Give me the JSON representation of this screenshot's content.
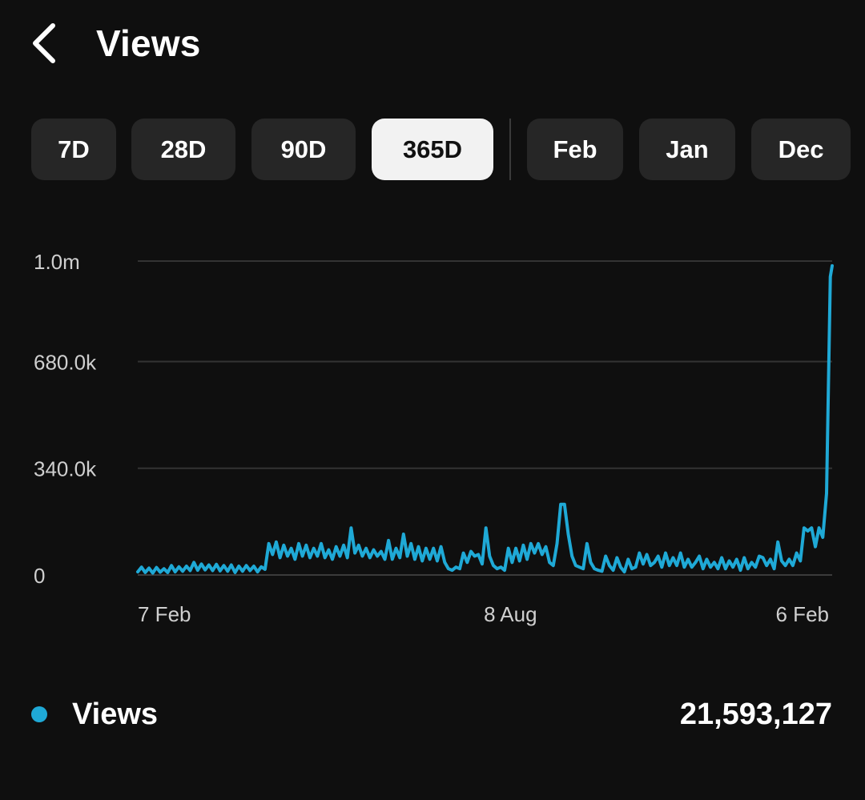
{
  "header": {
    "title": "Views",
    "back_icon": "chevron-left-icon"
  },
  "filters": {
    "ranges": [
      {
        "label": "7D",
        "active": false
      },
      {
        "label": "28D",
        "active": false
      },
      {
        "label": "90D",
        "active": false
      },
      {
        "label": "365D",
        "active": true
      }
    ],
    "months": [
      {
        "label": "Feb"
      },
      {
        "label": "Jan"
      },
      {
        "label": "Dec"
      }
    ]
  },
  "colors": {
    "accent": "#1fa9d6",
    "background": "#0f0f0f",
    "chip": "#262626",
    "chip_active": "#f2f2f2"
  },
  "chart_data": {
    "type": "line",
    "title": "",
    "xlabel": "",
    "ylabel": "",
    "ylim": [
      0,
      1000000
    ],
    "y_ticks": [
      {
        "value": 0,
        "label": "0"
      },
      {
        "value": 340000,
        "label": "340.0k"
      },
      {
        "value": 680000,
        "label": "680.0k"
      },
      {
        "value": 1000000,
        "label": "1.0m"
      }
    ],
    "x_ticks": [
      {
        "day": 0,
        "label": "7 Feb"
      },
      {
        "day": 182,
        "label": "8 Aug"
      },
      {
        "day": 364,
        "label": "6 Feb"
      }
    ],
    "grid": true,
    "series": [
      {
        "name": "Views",
        "color": "#1fa9d6",
        "points": [
          [
            0,
            10000
          ],
          [
            2,
            25000
          ],
          [
            4,
            8000
          ],
          [
            6,
            22000
          ],
          [
            8,
            6000
          ],
          [
            10,
            24000
          ],
          [
            12,
            9000
          ],
          [
            14,
            20000
          ],
          [
            16,
            8000
          ],
          [
            18,
            30000
          ],
          [
            20,
            10000
          ],
          [
            22,
            26000
          ],
          [
            24,
            12000
          ],
          [
            26,
            28000
          ],
          [
            28,
            14000
          ],
          [
            30,
            40000
          ],
          [
            32,
            15000
          ],
          [
            34,
            35000
          ],
          [
            36,
            16000
          ],
          [
            38,
            32000
          ],
          [
            40,
            14000
          ],
          [
            42,
            34000
          ],
          [
            44,
            13000
          ],
          [
            46,
            30000
          ],
          [
            48,
            12000
          ],
          [
            50,
            32000
          ],
          [
            52,
            8000
          ],
          [
            54,
            28000
          ],
          [
            56,
            12000
          ],
          [
            58,
            30000
          ],
          [
            60,
            14000
          ],
          [
            62,
            28000
          ],
          [
            64,
            10000
          ],
          [
            66,
            26000
          ],
          [
            68,
            18000
          ],
          [
            70,
            100000
          ],
          [
            72,
            65000
          ],
          [
            74,
            105000
          ],
          [
            76,
            55000
          ],
          [
            78,
            95000
          ],
          [
            80,
            60000
          ],
          [
            82,
            85000
          ],
          [
            84,
            50000
          ],
          [
            86,
            100000
          ],
          [
            88,
            60000
          ],
          [
            90,
            95000
          ],
          [
            92,
            55000
          ],
          [
            94,
            85000
          ],
          [
            96,
            60000
          ],
          [
            98,
            100000
          ],
          [
            100,
            55000
          ],
          [
            102,
            80000
          ],
          [
            104,
            50000
          ],
          [
            106,
            90000
          ],
          [
            108,
            60000
          ],
          [
            110,
            95000
          ],
          [
            112,
            55000
          ],
          [
            114,
            150000
          ],
          [
            116,
            70000
          ],
          [
            118,
            95000
          ],
          [
            120,
            60000
          ],
          [
            122,
            85000
          ],
          [
            124,
            55000
          ],
          [
            126,
            80000
          ],
          [
            128,
            60000
          ],
          [
            130,
            75000
          ],
          [
            132,
            50000
          ],
          [
            134,
            110000
          ],
          [
            136,
            50000
          ],
          [
            138,
            85000
          ],
          [
            140,
            55000
          ],
          [
            142,
            130000
          ],
          [
            144,
            60000
          ],
          [
            146,
            100000
          ],
          [
            148,
            50000
          ],
          [
            150,
            90000
          ],
          [
            152,
            45000
          ],
          [
            154,
            85000
          ],
          [
            156,
            50000
          ],
          [
            158,
            85000
          ],
          [
            160,
            45000
          ],
          [
            162,
            90000
          ],
          [
            164,
            40000
          ],
          [
            166,
            20000
          ],
          [
            168,
            15000
          ],
          [
            170,
            25000
          ],
          [
            172,
            20000
          ],
          [
            174,
            70000
          ],
          [
            176,
            40000
          ],
          [
            178,
            75000
          ],
          [
            180,
            60000
          ],
          [
            182,
            65000
          ],
          [
            184,
            35000
          ],
          [
            186,
            150000
          ],
          [
            188,
            60000
          ],
          [
            190,
            30000
          ],
          [
            192,
            20000
          ],
          [
            194,
            25000
          ],
          [
            196,
            15000
          ],
          [
            198,
            85000
          ],
          [
            200,
            40000
          ],
          [
            202,
            85000
          ],
          [
            204,
            45000
          ],
          [
            206,
            95000
          ],
          [
            208,
            50000
          ],
          [
            210,
            100000
          ],
          [
            212,
            70000
          ],
          [
            214,
            100000
          ],
          [
            216,
            65000
          ],
          [
            218,
            90000
          ],
          [
            220,
            40000
          ],
          [
            222,
            30000
          ],
          [
            224,
            100000
          ],
          [
            226,
            225000
          ],
          [
            228,
            225000
          ],
          [
            230,
            130000
          ],
          [
            232,
            60000
          ],
          [
            234,
            30000
          ],
          [
            236,
            25000
          ],
          [
            238,
            20000
          ],
          [
            240,
            100000
          ],
          [
            242,
            40000
          ],
          [
            244,
            20000
          ],
          [
            246,
            15000
          ],
          [
            248,
            12000
          ],
          [
            250,
            60000
          ],
          [
            252,
            30000
          ],
          [
            254,
            15000
          ],
          [
            256,
            55000
          ],
          [
            258,
            25000
          ],
          [
            260,
            10000
          ],
          [
            262,
            50000
          ],
          [
            264,
            20000
          ],
          [
            266,
            25000
          ],
          [
            268,
            70000
          ],
          [
            270,
            35000
          ],
          [
            272,
            65000
          ],
          [
            274,
            30000
          ],
          [
            276,
            40000
          ],
          [
            278,
            60000
          ],
          [
            280,
            25000
          ],
          [
            282,
            70000
          ],
          [
            284,
            30000
          ],
          [
            286,
            55000
          ],
          [
            288,
            30000
          ],
          [
            290,
            70000
          ],
          [
            292,
            25000
          ],
          [
            294,
            50000
          ],
          [
            296,
            25000
          ],
          [
            298,
            40000
          ],
          [
            300,
            60000
          ],
          [
            302,
            20000
          ],
          [
            304,
            50000
          ],
          [
            306,
            25000
          ],
          [
            308,
            40000
          ],
          [
            310,
            20000
          ],
          [
            312,
            55000
          ],
          [
            314,
            20000
          ],
          [
            316,
            45000
          ],
          [
            318,
            25000
          ],
          [
            320,
            50000
          ],
          [
            322,
            15000
          ],
          [
            324,
            55000
          ],
          [
            326,
            20000
          ],
          [
            328,
            40000
          ],
          [
            330,
            25000
          ],
          [
            332,
            60000
          ],
          [
            334,
            55000
          ],
          [
            336,
            30000
          ],
          [
            338,
            50000
          ],
          [
            340,
            20000
          ],
          [
            342,
            105000
          ],
          [
            344,
            45000
          ],
          [
            346,
            30000
          ],
          [
            348,
            50000
          ],
          [
            350,
            30000
          ],
          [
            352,
            70000
          ],
          [
            354,
            45000
          ],
          [
            356,
            150000
          ],
          [
            358,
            140000
          ],
          [
            360,
            150000
          ],
          [
            362,
            90000
          ],
          [
            364,
            150000
          ],
          [
            366,
            120000
          ],
          [
            368,
            260000
          ],
          [
            370,
            950000
          ],
          [
            371,
            985000
          ]
        ]
      }
    ],
    "legend": "bottom-left",
    "total": "21,593,127"
  }
}
